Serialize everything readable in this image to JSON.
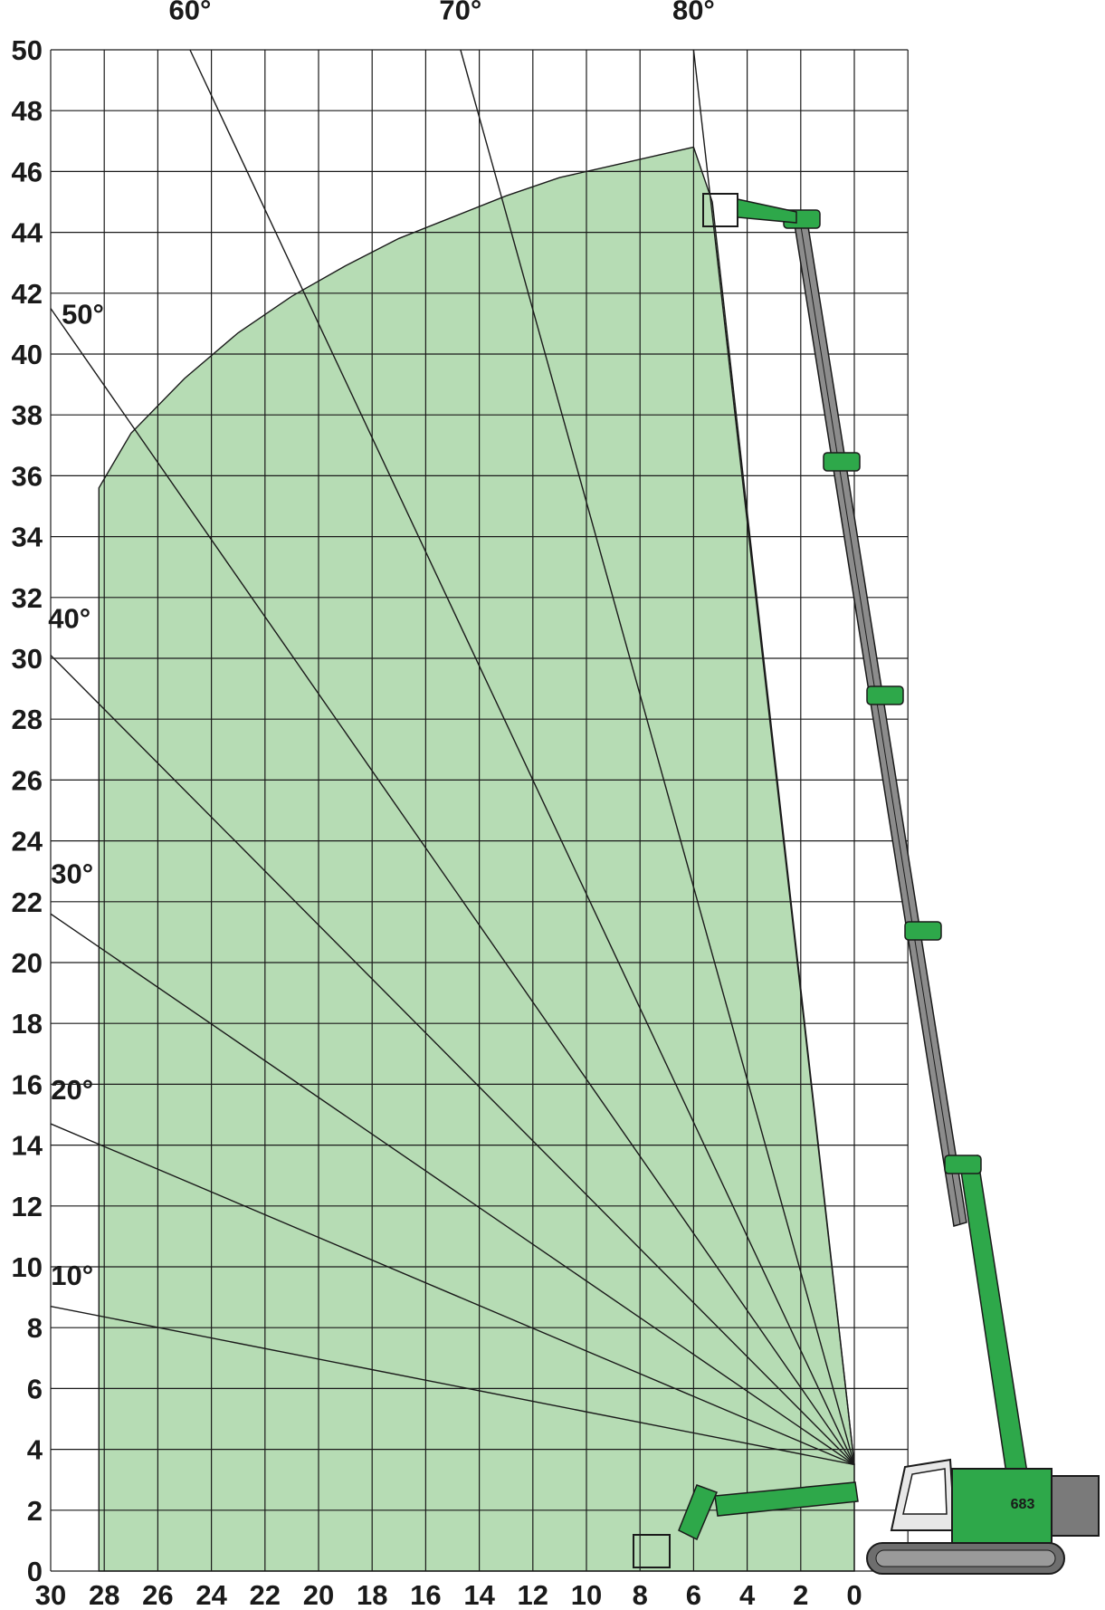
{
  "chart_data": {
    "type": "area",
    "title": "",
    "xlabel": "",
    "ylabel": "",
    "xlim": [
      30,
      -2
    ],
    "ylim": [
      0,
      50
    ],
    "grid": true,
    "x_ticks": [
      30,
      28,
      26,
      24,
      22,
      20,
      18,
      16,
      14,
      12,
      10,
      8,
      6,
      4,
      2,
      0
    ],
    "y_ticks": [
      0,
      2,
      4,
      6,
      8,
      10,
      12,
      14,
      16,
      18,
      20,
      22,
      24,
      26,
      28,
      30,
      32,
      34,
      36,
      38,
      40,
      42,
      44,
      46,
      48,
      50
    ],
    "working_range_envelope": {
      "name": "",
      "points": [
        [
          28.2,
          0
        ],
        [
          28.2,
          35.6
        ],
        [
          27,
          37.4
        ],
        [
          25,
          39.2
        ],
        [
          23,
          40.7
        ],
        [
          21,
          41.9
        ],
        [
          19,
          42.9
        ],
        [
          17,
          43.8
        ],
        [
          15,
          44.5
        ],
        [
          13,
          45.2
        ],
        [
          11,
          45.8
        ],
        [
          9,
          46.2
        ],
        [
          7,
          46.6
        ],
        [
          6,
          46.8
        ],
        [
          5.3,
          45
        ],
        [
          0,
          3.5
        ],
        [
          0,
          0
        ]
      ]
    },
    "boom_angle_rays": {
      "origin": [
        0,
        3.5
      ],
      "rays": [
        {
          "label": "10°",
          "angle_deg": 10,
          "end": [
            30,
            8.7
          ],
          "label_pos": [
            29.2,
            9.4
          ]
        },
        {
          "label": "20°",
          "angle_deg": 20,
          "end": [
            30,
            14.7
          ],
          "label_pos": [
            29.2,
            15.5
          ]
        },
        {
          "label": "30°",
          "angle_deg": 30,
          "end": [
            30,
            21.6
          ],
          "label_pos": [
            29.2,
            22.6
          ]
        },
        {
          "label": "40°",
          "angle_deg": 40,
          "end": [
            30,
            30.1
          ],
          "label_pos": [
            29.3,
            31.0
          ]
        },
        {
          "label": "50°",
          "angle_deg": 50,
          "end": [
            30,
            41.5
          ],
          "label_pos": [
            28.8,
            41.0
          ]
        },
        {
          "label": "60°",
          "angle_deg": 60,
          "end": [
            24.8,
            50
          ],
          "label_pos": [
            24.8,
            51.0
          ]
        },
        {
          "label": "70°",
          "angle_deg": 70,
          "end": [
            14.7,
            50
          ],
          "label_pos": [
            14.7,
            51.0
          ]
        },
        {
          "label": "80°",
          "angle_deg": 80,
          "end": [
            6.0,
            50
          ],
          "label_pos": [
            6.0,
            51.0
          ]
        }
      ]
    },
    "machine_label": "683"
  }
}
